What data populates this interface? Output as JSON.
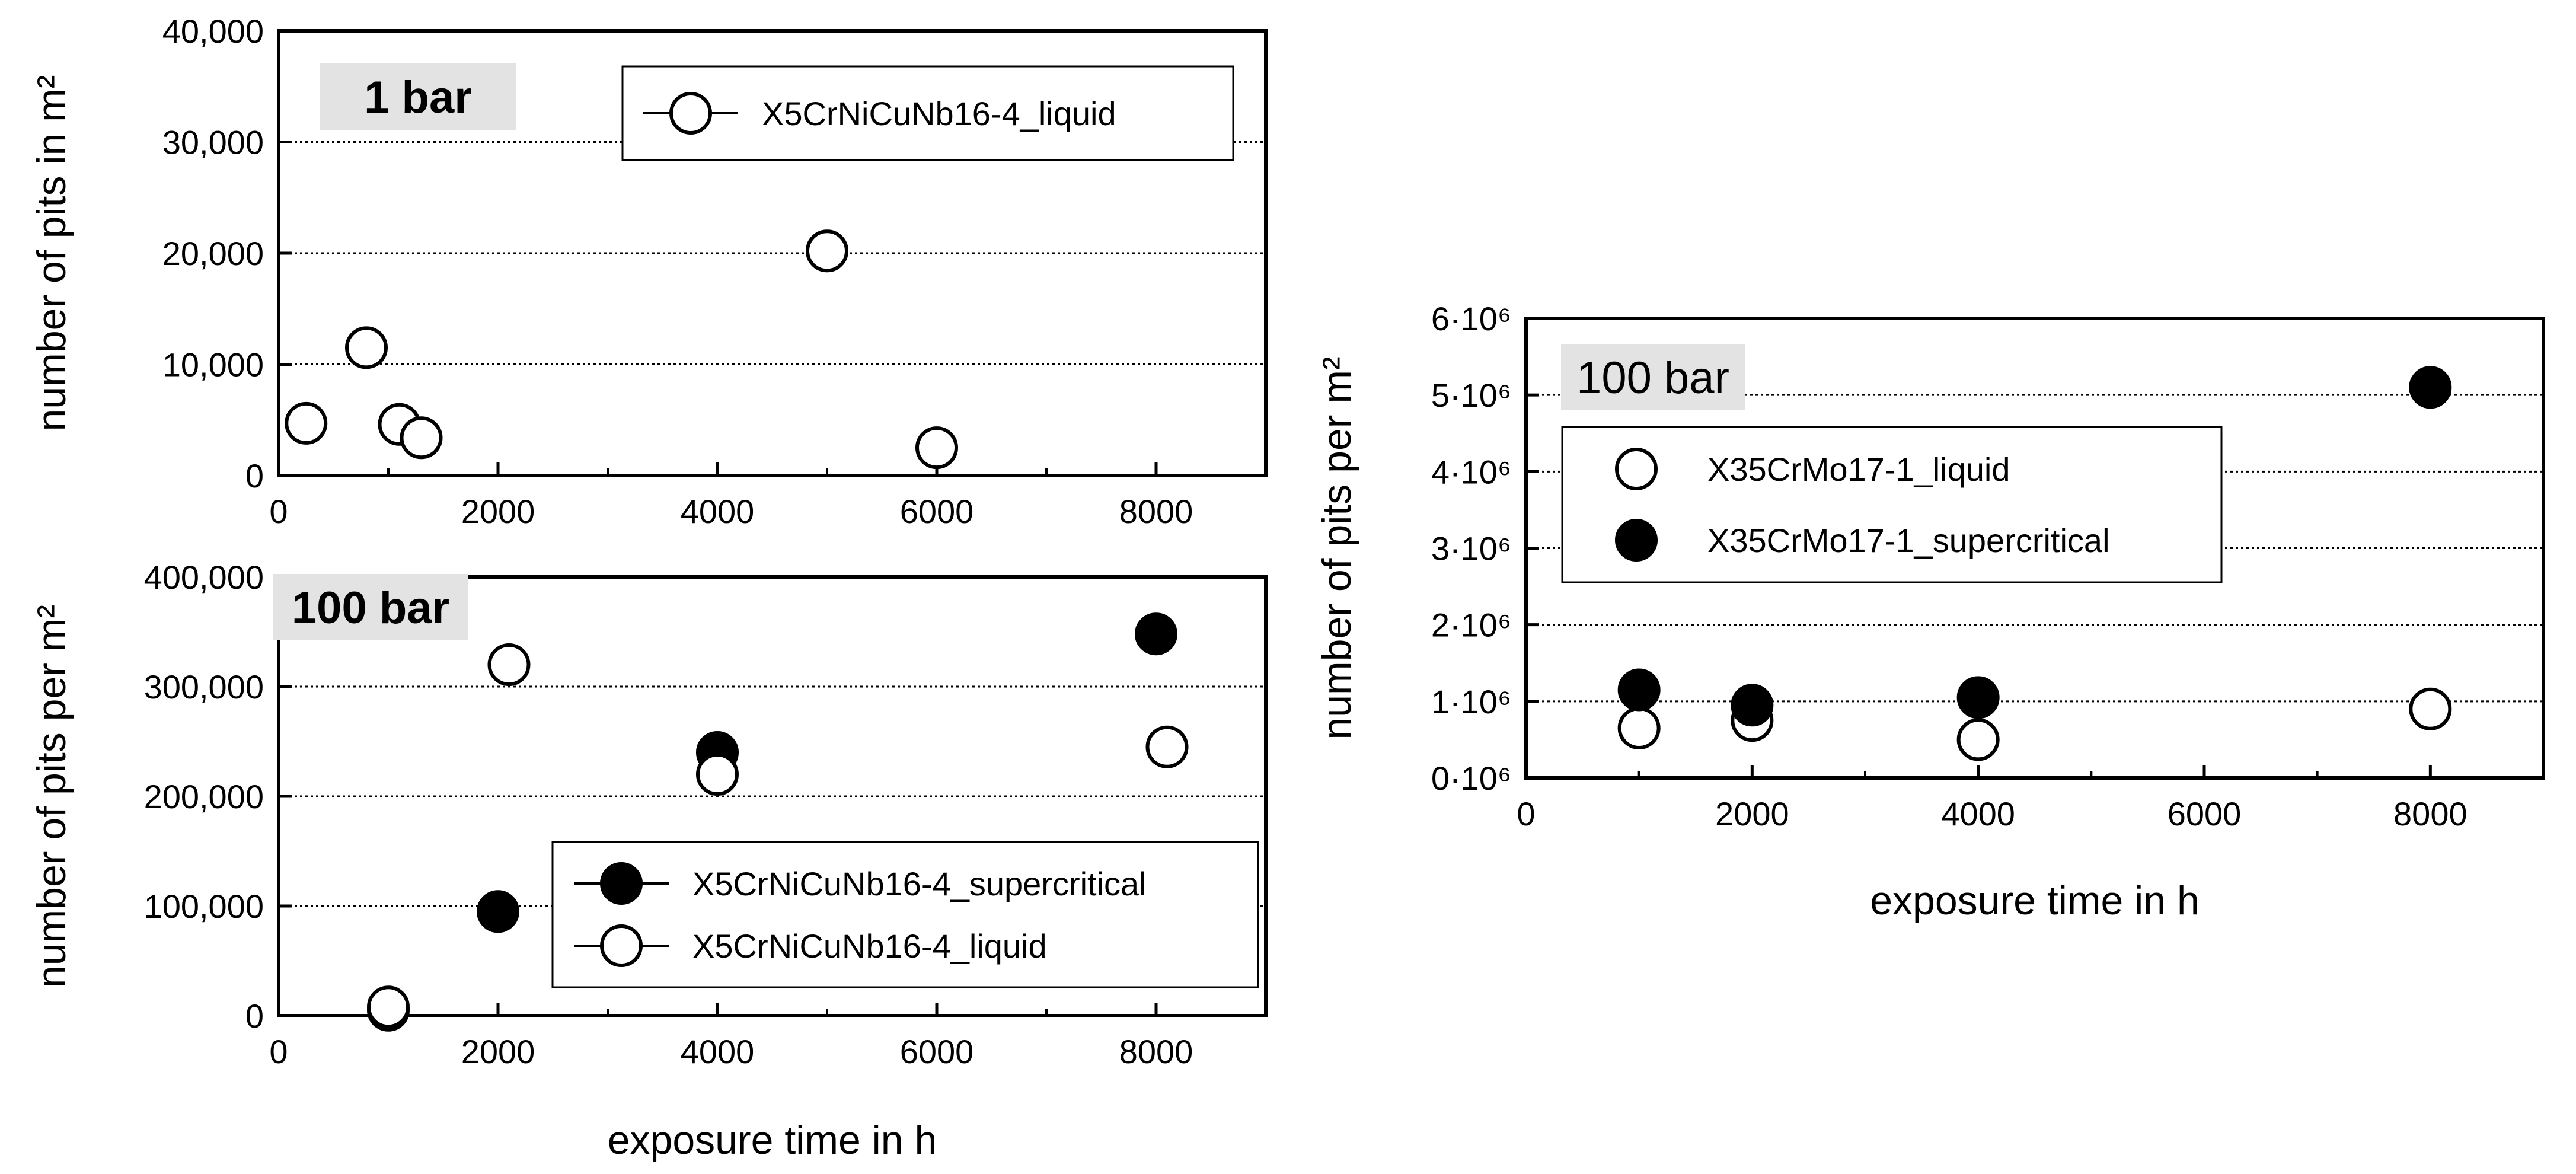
{
  "chart_data": [
    {
      "type": "scatter",
      "panel_label": "1 bar",
      "ylabel": "number of pits in m²",
      "xlabel": "",
      "xlim": [
        0,
        9000
      ],
      "ylim": [
        0,
        40000
      ],
      "x_ticks": [
        "0",
        "2000",
        "4000",
        "6000",
        "8000"
      ],
      "y_ticks": [
        "0",
        "10,000",
        "20,000",
        "30,000",
        "40,000"
      ],
      "grid": "horizontal",
      "legend_position": "top-right",
      "series": [
        {
          "name": "X5CrNiCuNb16-4_liquid",
          "marker": "open-circle",
          "points": [
            [
              250,
              4700
            ],
            [
              800,
              11500
            ],
            [
              1100,
              4600
            ],
            [
              1300,
              3400
            ],
            [
              5000,
              20200
            ],
            [
              6000,
              2500
            ]
          ]
        }
      ]
    },
    {
      "type": "scatter",
      "panel_label": "100 bar",
      "ylabel": "number of  pits per m²",
      "xlabel": "exposure time in h",
      "xlim": [
        0,
        9000
      ],
      "ylim": [
        0,
        400000
      ],
      "x_ticks": [
        "0",
        "2000",
        "4000",
        "6000",
        "8000"
      ],
      "y_ticks": [
        "0",
        "100,000",
        "200,000",
        "300,000",
        "400,000"
      ],
      "grid": "horizontal",
      "legend_position": "bottom-right",
      "series": [
        {
          "name": "X5CrNiCuNb16-4_supercritical",
          "marker": "filled-circle",
          "points": [
            [
              1000,
              5000
            ],
            [
              2000,
              95000
            ],
            [
              4000,
              240000
            ],
            [
              8000,
              348000
            ]
          ]
        },
        {
          "name": "X5CrNiCuNb16-4_liquid",
          "marker": "open-circle",
          "points": [
            [
              1000,
              8000
            ],
            [
              2100,
              320000
            ],
            [
              4000,
              220000
            ],
            [
              8100,
              245000
            ]
          ]
        }
      ]
    },
    {
      "type": "scatter",
      "panel_label": "100 bar",
      "ylabel": "number of  pits per m²",
      "xlabel": "exposure time in h",
      "xlim": [
        0,
        9000
      ],
      "ylim": [
        0,
        6000000
      ],
      "x_ticks": [
        "0",
        "2000",
        "4000",
        "6000",
        "8000"
      ],
      "y_ticks": [
        "0·10⁶",
        "1·10⁶",
        "2·10⁶",
        "3·10⁶",
        "4·10⁶",
        "5·10⁶",
        "6·10⁶"
      ],
      "grid": "horizontal",
      "legend_position": "top-left",
      "series": [
        {
          "name": "X35CrMo17-1_liquid",
          "marker": "open-circle",
          "points": [
            [
              1000,
              650000
            ],
            [
              2000,
              750000
            ],
            [
              4000,
              500000
            ],
            [
              8000,
              900000
            ]
          ]
        },
        {
          "name": "X35CrMo17-1_supercritical",
          "marker": "filled-circle",
          "points": [
            [
              1000,
              1150000
            ],
            [
              2000,
              950000
            ],
            [
              4000,
              1050000
            ],
            [
              8000,
              5100000
            ]
          ]
        }
      ]
    }
  ]
}
